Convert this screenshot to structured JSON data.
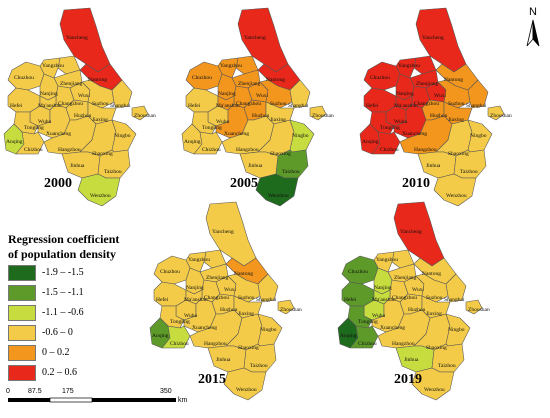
{
  "legend": {
    "title_line1": "Regression coefficient",
    "title_line2": "of population density",
    "classes": [
      {
        "label": "-1.9 – -1.5",
        "color": "#1e6b1e"
      },
      {
        "label": "-1.5 – -1.1",
        "color": "#5d9a2a"
      },
      {
        "label": "-1.1 – -0.6",
        "color": "#c6dc3f"
      },
      {
        "label": "-0.6 – 0",
        "color": "#f3cb48"
      },
      {
        "label": "0 – 0.2",
        "color": "#f2961e"
      },
      {
        "label": "0.2 – 0.6",
        "color": "#e8281a"
      }
    ]
  },
  "north_arrow": {
    "label": "N",
    "icon": "north-arrow-icon"
  },
  "scale_bar": {
    "ticks": [
      "0",
      "87.5",
      "175",
      "350"
    ],
    "unit": "km"
  },
  "city_labels": {
    "yancheng": "Yancheng",
    "taizhou_n": "Taizhou",
    "yangzhou": "Yangzhou",
    "nantong": "Nantong",
    "chuzhou": "Chuzhou",
    "zhenjiang": "Zhenjiang",
    "nanjing": "Nanjing",
    "changzhou": "Changzhou",
    "wuxi": "Wuxi",
    "suzhou": "Suzhou",
    "shanghai": "Shanghai",
    "hefei": "Hefei",
    "maanshan": "Ma'anshan",
    "wuhu": "Wuhu",
    "tongling": "Tongling",
    "xuancheng": "Xuancheng",
    "huzhou": "Huzhou",
    "jiaxing": "Jiaxing",
    "anqing": "Anqing",
    "chizhou": "Chizhou",
    "hangzhou": "Hangzhou",
    "shaoxing": "Shaoxing",
    "ningbo": "Ningbo",
    "zhoushan": "Zhoushan",
    "jinhua": "Jinhua",
    "taizhou_s": "Taizhou",
    "wenzhou": "Wenzhou"
  },
  "maps": [
    {
      "year": "2000",
      "colors": {
        "yancheng": "#e8281a",
        "taizhou_n": "#f3cb48",
        "yangzhou": "#f3cb48",
        "nantong": "#e8281a",
        "chuzhou": "#f3cb48",
        "zhenjiang": "#f3cb48",
        "nanjing": "#f3cb48",
        "changzhou": "#f3cb48",
        "wuxi": "#f3cb48",
        "suzhou": "#f3cb48",
        "shanghai": "#f3cb48",
        "hefei": "#f3cb48",
        "maanshan": "#f3cb48",
        "wuhu": "#f3cb48",
        "tongling": "#f3cb48",
        "xuancheng": "#f3cb48",
        "huzhou": "#f3cb48",
        "jiaxing": "#f3cb48",
        "anqing": "#c6dc3f",
        "chizhou": "#f3cb48",
        "hangzhou": "#f3cb48",
        "shaoxing": "#f3cb48",
        "ningbo": "#f3cb48",
        "zhoushan": "#f3cb48",
        "jinhua": "#f3cb48",
        "taizhou_s": "#f3cb48",
        "wenzhou": "#c6dc3f"
      }
    },
    {
      "year": "2005",
      "colors": {
        "yancheng": "#e8281a",
        "taizhou_n": "#f2961e",
        "yangzhou": "#f2961e",
        "nantong": "#e8281a",
        "chuzhou": "#f2961e",
        "zhenjiang": "#f2961e",
        "nanjing": "#f2961e",
        "changzhou": "#f2961e",
        "wuxi": "#f2961e",
        "suzhou": "#f2961e",
        "shanghai": "#f3cb48",
        "hefei": "#f3cb48",
        "maanshan": "#f2961e",
        "wuhu": "#f3cb48",
        "tongling": "#f3cb48",
        "xuancheng": "#f2961e",
        "huzhou": "#f2961e",
        "jiaxing": "#f3cb48",
        "anqing": "#f3cb48",
        "chizhou": "#f3cb48",
        "hangzhou": "#f3cb48",
        "shaoxing": "#f3cb48",
        "ningbo": "#c6dc3f",
        "zhoushan": "#f3cb48",
        "jinhua": "#f3cb48",
        "taizhou_s": "#5d9a2a",
        "wenzhou": "#1e6b1e"
      }
    },
    {
      "year": "2010",
      "colors": {
        "yancheng": "#e8281a",
        "taizhou_n": "#e8281a",
        "yangzhou": "#e8281a",
        "nantong": "#f2961e",
        "chuzhou": "#e8281a",
        "zhenjiang": "#e8281a",
        "nanjing": "#e8281a",
        "changzhou": "#e8281a",
        "wuxi": "#e8281a",
        "suzhou": "#f2961e",
        "shanghai": "#f2961e",
        "hefei": "#e8281a",
        "maanshan": "#e8281a",
        "wuhu": "#e8281a",
        "tongling": "#e8281a",
        "xuancheng": "#e8281a",
        "huzhou": "#f2961e",
        "jiaxing": "#f2961e",
        "anqing": "#e8281a",
        "chizhou": "#e8281a",
        "hangzhou": "#f2961e",
        "shaoxing": "#f3cb48",
        "ningbo": "#f3cb48",
        "zhoushan": "#f3cb48",
        "jinhua": "#f3cb48",
        "taizhou_s": "#f3cb48",
        "wenzhou": "#f3cb48"
      }
    },
    {
      "year": "2015",
      "colors": {
        "yancheng": "#f3cb48",
        "taizhou_n": "#f3cb48",
        "yangzhou": "#f3cb48",
        "nantong": "#f2961e",
        "chuzhou": "#f3cb48",
        "zhenjiang": "#f3cb48",
        "nanjing": "#f3cb48",
        "changzhou": "#f3cb48",
        "wuxi": "#f3cb48",
        "suzhou": "#f3cb48",
        "shanghai": "#f3cb48",
        "hefei": "#f3cb48",
        "maanshan": "#f3cb48",
        "wuhu": "#f3cb48",
        "tongling": "#f3cb48",
        "xuancheng": "#f3cb48",
        "huzhou": "#f3cb48",
        "jiaxing": "#f3cb48",
        "anqing": "#5d9a2a",
        "chizhou": "#c6dc3f",
        "hangzhou": "#f3cb48",
        "shaoxing": "#f3cb48",
        "ningbo": "#f3cb48",
        "zhoushan": "#f3cb48",
        "jinhua": "#f3cb48",
        "taizhou_s": "#f3cb48",
        "wenzhou": "#f3cb48"
      }
    },
    {
      "year": "2019",
      "colors": {
        "yancheng": "#e8281a",
        "taizhou_n": "#f3cb48",
        "yangzhou": "#f3cb48",
        "nantong": "#f3cb48",
        "chuzhou": "#5d9a2a",
        "zhenjiang": "#f3cb48",
        "nanjing": "#c6dc3f",
        "changzhou": "#f3cb48",
        "wuxi": "#f3cb48",
        "suzhou": "#f3cb48",
        "shanghai": "#f3cb48",
        "hefei": "#5d9a2a",
        "maanshan": "#c6dc3f",
        "wuhu": "#c6dc3f",
        "tongling": "#5d9a2a",
        "xuancheng": "#f3cb48",
        "huzhou": "#f3cb48",
        "jiaxing": "#f3cb48",
        "anqing": "#1e6b1e",
        "chizhou": "#5d9a2a",
        "hangzhou": "#f3cb48",
        "shaoxing": "#f3cb48",
        "ningbo": "#f3cb48",
        "zhoushan": "#f3cb48",
        "jinhua": "#c6dc3f",
        "taizhou_s": "#f3cb48",
        "wenzhou": "#f3cb48"
      }
    }
  ]
}
